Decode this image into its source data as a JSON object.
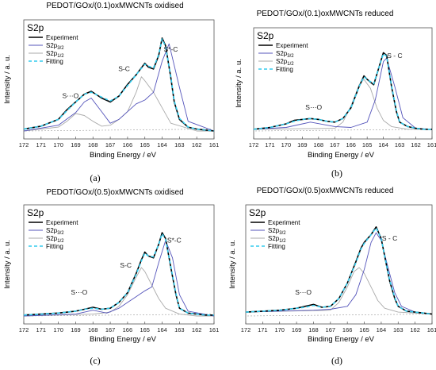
{
  "legend_labels": [
    "Experiment",
    "S2p3/2",
    "S2p1/2",
    "Fitting"
  ],
  "chart_data": [
    {
      "type": "line",
      "panel": "(a)",
      "title": "PEDOT/GOx/(0.1)oxMWCNTs oxidised",
      "tag": "S2p",
      "xlabel": "Binding Energy / eV",
      "ylabel": "Intensity / a. u.",
      "xlim": [
        172,
        161
      ],
      "xticks": [
        "172",
        "171",
        "170",
        "169",
        "168",
        "167",
        "166",
        "165",
        "164",
        "163",
        "162",
        "161"
      ],
      "annotations": [
        {
          "text": "S⋯O",
          "x": 169.3,
          "y": 0.34
        },
        {
          "text": "S-C",
          "x": 166.2,
          "y": 0.62
        },
        {
          "text": "S*-C",
          "x": 163.5,
          "y": 0.82
        }
      ],
      "series": [
        {
          "name": "Experiment",
          "color": "#000000",
          "x": [
            172,
            171,
            170,
            169.5,
            169,
            168.5,
            168.1,
            167.5,
            167,
            166.5,
            166,
            165.5,
            165,
            164.8,
            164.5,
            164.2,
            164,
            163.8,
            163.5,
            163.3,
            163,
            162.5,
            162,
            161.5,
            161
          ],
          "y": [
            0.02,
            0.05,
            0.12,
            0.22,
            0.3,
            0.38,
            0.41,
            0.34,
            0.3,
            0.36,
            0.48,
            0.58,
            0.7,
            0.66,
            0.64,
            0.78,
            0.96,
            0.88,
            0.55,
            0.3,
            0.12,
            0.04,
            0.02,
            0.01,
            0.0
          ]
        },
        {
          "name": "Fitting",
          "color": "#33ccee",
          "dashed": true,
          "x": [
            172,
            171,
            170,
            169.5,
            169,
            168.5,
            168.1,
            167.5,
            167,
            166.5,
            166,
            165.5,
            165,
            164.8,
            164.5,
            164.2,
            164,
            163.8,
            163.5,
            163.3,
            163,
            162.5,
            162,
            161.5,
            161
          ],
          "y": [
            0.02,
            0.05,
            0.12,
            0.21,
            0.3,
            0.38,
            0.4,
            0.35,
            0.31,
            0.36,
            0.47,
            0.58,
            0.69,
            0.67,
            0.65,
            0.79,
            0.95,
            0.87,
            0.56,
            0.31,
            0.13,
            0.04,
            0.02,
            0.01,
            0.0
          ]
        },
        {
          "name": "S2p3/2",
          "color": "#5555bb",
          "x": [
            172,
            170,
            169,
            168.5,
            168.1,
            167.5,
            167,
            166.5,
            166,
            165.5,
            165,
            164.5,
            164,
            163.6,
            163,
            162.5,
            161
          ],
          "y": [
            0.0,
            0.06,
            0.19,
            0.3,
            0.34,
            0.2,
            0.08,
            0.12,
            0.2,
            0.28,
            0.32,
            0.4,
            0.72,
            0.9,
            0.45,
            0.1,
            0.0
          ]
        },
        {
          "name": "S2p1/2",
          "color": "#aaaaaa",
          "x": [
            172,
            170,
            169.5,
            169,
            168.5,
            168,
            167.5,
            167,
            166.5,
            166,
            165.5,
            165.2,
            165,
            164.5,
            164,
            163.5,
            162,
            161
          ],
          "y": [
            0.0,
            0.04,
            0.1,
            0.18,
            0.16,
            0.1,
            0.05,
            0.06,
            0.12,
            0.2,
            0.4,
            0.56,
            0.52,
            0.4,
            0.24,
            0.08,
            0.0,
            0.0
          ]
        }
      ]
    },
    {
      "type": "line",
      "panel": "(b)",
      "title": "PEDOT/GOx/(0.1)oxMWCNTs reduced",
      "tag": "S2p",
      "xlabel": "Binding Energy / eV",
      "ylabel": "Intensity / a. u.",
      "xlim": [
        172,
        161
      ],
      "xticks": [
        "172",
        "171",
        "170",
        "169",
        "168",
        "167",
        "166",
        "165",
        "164",
        "163",
        "162",
        "161"
      ],
      "annotations": [
        {
          "text": "S⋯O",
          "x": 168.3,
          "y": 0.24
        },
        {
          "text": "S - C",
          "x": 163.3,
          "y": 0.82
        }
      ],
      "series": [
        {
          "name": "Experiment",
          "color": "#000000",
          "x": [
            172,
            171,
            170,
            169.5,
            169,
            168.5,
            168,
            167.5,
            167,
            166.5,
            166,
            165.5,
            165.2,
            165,
            164.6,
            164.3,
            164,
            163.8,
            163.5,
            163.2,
            163,
            162.5,
            162,
            161.5,
            161
          ],
          "y": [
            0.02,
            0.04,
            0.08,
            0.12,
            0.13,
            0.14,
            0.13,
            0.11,
            0.1,
            0.14,
            0.26,
            0.5,
            0.62,
            0.58,
            0.52,
            0.7,
            0.88,
            0.85,
            0.5,
            0.22,
            0.1,
            0.05,
            0.03,
            0.02,
            0.02
          ]
        },
        {
          "name": "Fitting",
          "color": "#33ccee",
          "dashed": true,
          "x": [
            172,
            171,
            170,
            169.5,
            169,
            168.5,
            168,
            167.5,
            167,
            166.5,
            166,
            165.5,
            165.2,
            165,
            164.6,
            164.3,
            164,
            163.8,
            163.5,
            163.2,
            163,
            162.5,
            162,
            161.5,
            161
          ],
          "y": [
            0.02,
            0.04,
            0.08,
            0.11,
            0.13,
            0.14,
            0.13,
            0.11,
            0.1,
            0.14,
            0.26,
            0.5,
            0.61,
            0.58,
            0.53,
            0.7,
            0.87,
            0.84,
            0.51,
            0.23,
            0.1,
            0.05,
            0.03,
            0.02,
            0.02
          ]
        },
        {
          "name": "S2p3/2",
          "color": "#5555bb",
          "x": [
            172,
            170,
            168.5,
            167,
            166,
            165,
            164.5,
            164,
            163.8,
            163.3,
            162.8,
            162,
            161
          ],
          "y": [
            0.02,
            0.04,
            0.1,
            0.05,
            0.04,
            0.1,
            0.35,
            0.78,
            0.82,
            0.5,
            0.15,
            0.03,
            0.02
          ]
        },
        {
          "name": "S2p1/2",
          "color": "#aaaaaa",
          "x": [
            172,
            167,
            166.5,
            166,
            165.5,
            165.2,
            164.8,
            164.4,
            164,
            163.5,
            162.5,
            161
          ],
          "y": [
            0.02,
            0.03,
            0.1,
            0.28,
            0.52,
            0.58,
            0.48,
            0.26,
            0.12,
            0.05,
            0.02,
            0.02
          ]
        }
      ]
    },
    {
      "type": "line",
      "panel": "(c)",
      "title": "PEDOT/GOx/(0.5)oxMWCNTs oxidised",
      "tag": "S2p",
      "xlabel": "Binding Energy / eV",
      "ylabel": "Intensity / a. u.",
      "xlim": [
        172,
        161
      ],
      "xticks": [
        "172",
        "171",
        "170",
        "169",
        "168",
        "167",
        "166",
        "165",
        "164",
        "163",
        "162",
        "161"
      ],
      "annotations": [
        {
          "text": "S⋯O",
          "x": 168.8,
          "y": 0.22
        },
        {
          "text": "S-C",
          "x": 166.1,
          "y": 0.5
        },
        {
          "text": "S*-C",
          "x": 163.3,
          "y": 0.76
        }
      ],
      "series": [
        {
          "name": "Experiment",
          "color": "#000000",
          "x": [
            172,
            171,
            170,
            169,
            168.5,
            168,
            167.5,
            167,
            166.5,
            166,
            165.5,
            165.2,
            165,
            164.8,
            164.5,
            164.2,
            164,
            163.8,
            163.5,
            163.2,
            163,
            162.5,
            162,
            161.5,
            161
          ],
          "y": [
            0.01,
            0.02,
            0.03,
            0.05,
            0.07,
            0.09,
            0.07,
            0.08,
            0.14,
            0.24,
            0.44,
            0.58,
            0.66,
            0.62,
            0.6,
            0.74,
            0.86,
            0.8,
            0.5,
            0.22,
            0.08,
            0.03,
            0.02,
            0.01,
            0.01
          ]
        },
        {
          "name": "Fitting",
          "color": "#33ccee",
          "dashed": true,
          "x": [
            172,
            171,
            170,
            169,
            168.5,
            168,
            167.5,
            167,
            166.5,
            166,
            165.5,
            165.2,
            165,
            164.8,
            164.5,
            164.2,
            164,
            163.8,
            163.5,
            163.2,
            163,
            162.5,
            162,
            161.5,
            161
          ],
          "y": [
            0.01,
            0.02,
            0.03,
            0.05,
            0.07,
            0.08,
            0.07,
            0.08,
            0.14,
            0.24,
            0.43,
            0.57,
            0.65,
            0.62,
            0.61,
            0.74,
            0.85,
            0.79,
            0.51,
            0.23,
            0.08,
            0.03,
            0.02,
            0.01,
            0.01
          ]
        },
        {
          "name": "S2p3/2",
          "color": "#5555bb",
          "x": [
            172,
            169,
            168,
            167.2,
            166.5,
            166,
            165.5,
            165,
            164.6,
            164.2,
            163.8,
            163.4,
            163,
            162.5,
            161
          ],
          "y": [
            0.0,
            0.02,
            0.06,
            0.03,
            0.08,
            0.14,
            0.2,
            0.26,
            0.3,
            0.55,
            0.78,
            0.6,
            0.22,
            0.05,
            0.0
          ]
        },
        {
          "name": "S2p1/2",
          "color": "#aaaaaa",
          "x": [
            172,
            168,
            167,
            166.5,
            166,
            165.5,
            165.2,
            165,
            164.6,
            164.2,
            163.8,
            163,
            162,
            161
          ],
          "y": [
            0.0,
            0.02,
            0.04,
            0.1,
            0.22,
            0.4,
            0.5,
            0.46,
            0.32,
            0.18,
            0.08,
            0.02,
            0.0,
            0.0
          ]
        }
      ]
    },
    {
      "type": "line",
      "panel": "(d)",
      "title": "PEDOT/GOx/(0.5)oxMWCNTs reduced",
      "tag": "S2p",
      "xlabel": "Binding Energy / eV",
      "ylabel": "Intensity / a. u.",
      "xlim": [
        172,
        161
      ],
      "xticks": [
        "172",
        "171",
        "170",
        "169",
        "168",
        "167",
        "166",
        "165",
        "164",
        "163",
        "162",
        "161"
      ],
      "annotations": [
        {
          "text": "S⋯O",
          "x": 168.6,
          "y": 0.22
        },
        {
          "text": "S - C",
          "x": 163.5,
          "y": 0.78
        }
      ],
      "series": [
        {
          "name": "Experiment",
          "color": "#000000",
          "x": [
            172,
            171,
            170,
            169.5,
            169,
            168.5,
            168,
            167.5,
            167,
            166.5,
            166,
            165.5,
            165.2,
            165,
            164.6,
            164.3,
            164,
            163.8,
            163.5,
            163.2,
            163,
            162.5,
            162,
            161.5,
            161
          ],
          "y": [
            0.04,
            0.05,
            0.06,
            0.07,
            0.08,
            0.1,
            0.12,
            0.09,
            0.1,
            0.18,
            0.34,
            0.56,
            0.7,
            0.76,
            0.84,
            0.92,
            0.8,
            0.62,
            0.36,
            0.18,
            0.1,
            0.05,
            0.04,
            0.03,
            0.02
          ]
        },
        {
          "name": "Fitting",
          "color": "#33ccee",
          "dashed": true,
          "x": [
            172,
            171,
            170,
            169.5,
            169,
            168.5,
            168,
            167.5,
            167,
            166.5,
            166,
            165.5,
            165.2,
            165,
            164.6,
            164.3,
            164,
            163.8,
            163.5,
            163.2,
            163,
            162.5,
            162,
            161.5,
            161
          ],
          "y": [
            0.04,
            0.05,
            0.06,
            0.07,
            0.08,
            0.09,
            0.11,
            0.09,
            0.1,
            0.18,
            0.34,
            0.55,
            0.69,
            0.75,
            0.84,
            0.91,
            0.8,
            0.62,
            0.37,
            0.19,
            0.1,
            0.05,
            0.04,
            0.03,
            0.02
          ]
        },
        {
          "name": "S2p3/2",
          "color": "#5555bb",
          "x": [
            172,
            168,
            167,
            166,
            165.5,
            165,
            164.6,
            164.3,
            164,
            163.6,
            163.2,
            162.8,
            162,
            161
          ],
          "y": [
            0.04,
            0.06,
            0.07,
            0.1,
            0.22,
            0.48,
            0.76,
            0.86,
            0.78,
            0.5,
            0.24,
            0.1,
            0.04,
            0.02
          ]
        },
        {
          "name": "S2p1/2",
          "color": "#aaaaaa",
          "x": [
            172,
            167,
            166.5,
            166,
            165.6,
            165.3,
            165,
            164.6,
            164.2,
            163.8,
            163,
            162,
            161
          ],
          "y": [
            0.04,
            0.06,
            0.14,
            0.3,
            0.46,
            0.5,
            0.44,
            0.3,
            0.16,
            0.08,
            0.04,
            0.03,
            0.02
          ]
        }
      ]
    }
  ]
}
